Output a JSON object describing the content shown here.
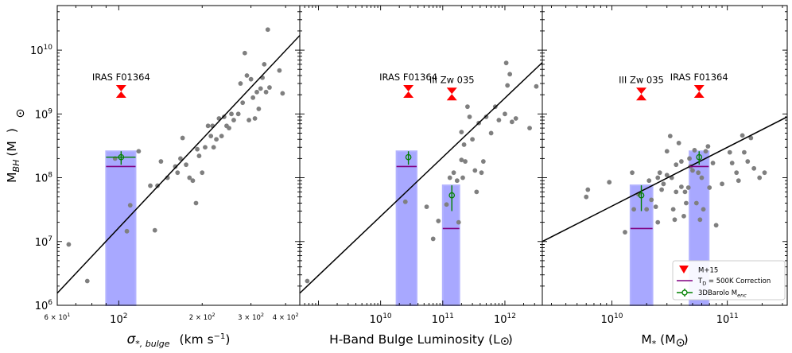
{
  "chart_data": {
    "type": "scatter",
    "shared_ylabel_main": "M",
    "shared_ylabel_sub": "BH",
    "shared_ylabel_unit": "(M",
    "shared_ylabel_close": ")",
    "ylim": [
      1000000,
      50000000000
    ],
    "yticks": [
      {
        "v": 1000000,
        "base": "10",
        "exp": "6"
      },
      {
        "v": 10000000,
        "base": "10",
        "exp": "7"
      },
      {
        "v": 100000000,
        "base": "10",
        "exp": "8"
      },
      {
        "v": 1000000000,
        "base": "10",
        "exp": "9"
      },
      {
        "v": 10000000000,
        "base": "10",
        "exp": "10"
      }
    ],
    "legend": {
      "placement": "lower-right of third panel",
      "entries": {
        "m15": "M+15",
        "td_base": "T",
        "td_sub": "D",
        "td_rest": " = 500K Correction",
        "barolo_base": "3DBarolo M",
        "barolo_sub": "enc"
      }
    },
    "panels": [
      {
        "id": "sigma",
        "xlabel_sym": "σ",
        "xlabel_sub": "*, bulge",
        "xlabel_unit": "(km s",
        "xlabel_sup": "−1",
        "xlabel_close": ")",
        "xlim": [
          60,
          450
        ],
        "xticks_major": [
          {
            "v": 100,
            "base": "10",
            "exp": "2"
          }
        ],
        "xticks_minor_labeled": [
          {
            "v": 60,
            "mant": "6 × 10",
            "exp": "1"
          },
          {
            "v": 200,
            "mant": "2 × 10",
            "exp": "2"
          },
          {
            "v": 300,
            "mant": "3 × 10",
            "exp": "2"
          },
          {
            "v": 400,
            "mant": "4 × 10",
            "exp": "2"
          }
        ],
        "fit_line": {
          "x": [
            60,
            450
          ],
          "y": [
            1550000,
            17000000000
          ]
        },
        "scatter": [
          [
            66,
            9000000
          ],
          [
            77,
            2400000
          ],
          [
            97,
            200000000
          ],
          [
            107,
            14500000
          ],
          [
            110,
            37000000
          ],
          [
            118,
            260000000
          ],
          [
            130,
            75000000
          ],
          [
            135,
            15000000
          ],
          [
            138,
            75000000
          ],
          [
            142,
            180000000
          ],
          [
            150,
            100000000
          ],
          [
            160,
            150000000
          ],
          [
            163,
            120000000
          ],
          [
            167,
            200000000
          ],
          [
            170,
            420000000
          ],
          [
            175,
            160000000
          ],
          [
            180,
            100000000
          ],
          [
            185,
            90000000
          ],
          [
            190,
            40000000
          ],
          [
            192,
            280000000
          ],
          [
            195,
            220000000
          ],
          [
            200,
            120000000
          ],
          [
            205,
            300000000
          ],
          [
            210,
            650000000
          ],
          [
            215,
            450000000
          ],
          [
            218,
            650000000
          ],
          [
            220,
            300000000
          ],
          [
            225,
            400000000
          ],
          [
            230,
            850000000
          ],
          [
            235,
            450000000
          ],
          [
            240,
            900000000
          ],
          [
            245,
            650000000
          ],
          [
            250,
            600000000
          ],
          [
            255,
            1000000000
          ],
          [
            260,
            800000000
          ],
          [
            270,
            1000000000
          ],
          [
            275,
            3000000000
          ],
          [
            280,
            1500000000
          ],
          [
            285,
            9000000000
          ],
          [
            290,
            4000000000
          ],
          [
            295,
            800000000
          ],
          [
            300,
            3500000000
          ],
          [
            305,
            1800000000
          ],
          [
            310,
            850000000
          ],
          [
            315,
            2200000000
          ],
          [
            320,
            1200000000
          ],
          [
            325,
            2500000000
          ],
          [
            330,
            3700000000
          ],
          [
            335,
            6000000000
          ],
          [
            340,
            2200000000
          ],
          [
            345,
            21000000000
          ],
          [
            350,
            2600000000
          ],
          [
            380,
            4800000000
          ],
          [
            390,
            2100000000
          ]
        ],
        "m15": [
          {
            "label": "IRAS F01364",
            "x": 102,
            "y": 2250000000
          }
        ],
        "bars": [
          {
            "x_lo": 90,
            "x_hi": 115,
            "y_top": 260000000,
            "td_y": 150000000
          }
        ],
        "barolo": [
          {
            "x": 102,
            "y": 210000000,
            "y_lo": 160000000,
            "y_hi": 260000000,
            "x_lo": 90,
            "x_hi": 115
          }
        ]
      },
      {
        "id": "hband",
        "xlabel_text": "H-Band Bulge Luminosity (L",
        "xlabel_close": ")",
        "xlim": [
          500000000,
          4000000000000
        ],
        "xticks_major": [
          {
            "v": 10000000000,
            "base": "10",
            "exp": "10"
          },
          {
            "v": 100000000000,
            "base": "10",
            "exp": "11"
          },
          {
            "v": 1000000000000,
            "base": "10",
            "exp": "12"
          }
        ],
        "xticks_minor_labeled": [],
        "fit_line": {
          "x": [
            500000000,
            4000000000000
          ],
          "y": [
            1550000,
            6400000000
          ]
        },
        "scatter": [
          [
            660000000,
            2400000
          ],
          [
            25000000000,
            42000000
          ],
          [
            55000000000,
            35000000
          ],
          [
            70000000000,
            11000000
          ],
          [
            85000000000,
            21000000
          ],
          [
            115000000000,
            38000000
          ],
          [
            130000000000,
            100000000
          ],
          [
            150000000000,
            120000000
          ],
          [
            170000000000,
            90000000
          ],
          [
            200000000000,
            190000000
          ],
          [
            210000000000,
            100000000
          ],
          [
            230000000000,
            180000000
          ],
          [
            200000000000,
            520000000
          ],
          [
            220000000000,
            330000000
          ],
          [
            250000000000,
            1300000000
          ],
          [
            270000000000,
            900000000
          ],
          [
            300000000000,
            400000000
          ],
          [
            330000000000,
            130000000
          ],
          [
            350000000000,
            60000000
          ],
          [
            380000000000,
            720000000
          ],
          [
            420000000000,
            120000000
          ],
          [
            450000000000,
            180000000
          ],
          [
            500000000000,
            900000000
          ],
          [
            600000000000,
            500000000
          ],
          [
            700000000000,
            1300000000
          ],
          [
            800000000000,
            800000000
          ],
          [
            1000000000000,
            1000000000
          ],
          [
            1050000000000,
            6300000000
          ],
          [
            1100000000000,
            2800000000
          ],
          [
            1200000000000,
            4200000000
          ],
          [
            1300000000000,
            750000000
          ],
          [
            1500000000000,
            850000000
          ],
          [
            2500000000000,
            600000000
          ],
          [
            3200000000000,
            2700000000
          ],
          [
            180000000000,
            20000000
          ]
        ],
        "m15": [
          {
            "label": "IRAS F01364",
            "x": 28000000000,
            "y": 2250000000
          },
          {
            "label": "III Zw 035",
            "x": 140000000000,
            "y": 2050000000
          }
        ],
        "bars": [
          {
            "x_lo": 18000000000,
            "x_hi": 38000000000,
            "y_top": 260000000,
            "td_y": 150000000
          },
          {
            "x_lo": 100000000000,
            "x_hi": 185000000000,
            "y_top": 76000000,
            "td_y": 16000000
          }
        ],
        "barolo": [
          {
            "x": 28000000000,
            "y": 210000000,
            "y_lo": 160000000,
            "y_hi": 260000000
          },
          {
            "x": 140000000000,
            "y": 53000000,
            "y_lo": 30000000,
            "y_hi": 76000000
          }
        ]
      },
      {
        "id": "mstar",
        "xlabel_text": "M",
        "xlabel_sub": "*",
        "xlabel_unit": " (M",
        "xlabel_close": ")",
        "xlim": [
          2500000000,
          330000000000
        ],
        "xticks_major": [
          {
            "v": 10000000000,
            "base": "10",
            "exp": "10"
          },
          {
            "v": 100000000000,
            "base": "10",
            "exp": "11"
          }
        ],
        "xticks_minor_labeled": [],
        "fit_line": {
          "x": [
            2500000000,
            330000000000
          ],
          "y": [
            10000000,
            900000000
          ]
        },
        "scatter": [
          [
            6000000000,
            50000000
          ],
          [
            6200000000,
            65000000
          ],
          [
            9500000000,
            85000000
          ],
          [
            13000000000,
            14000000
          ],
          [
            15000000000,
            120000000
          ],
          [
            15500000000,
            32000000
          ],
          [
            17000000000,
            55000000
          ],
          [
            20000000000,
            32000000
          ],
          [
            21000000000,
            90000000
          ],
          [
            22000000000,
            45000000
          ],
          [
            24000000000,
            35000000
          ],
          [
            25000000000,
            20000000
          ],
          [
            25000000000,
            100000000
          ],
          [
            26000000000,
            120000000
          ],
          [
            27000000000,
            65000000
          ],
          [
            28000000000,
            80000000
          ],
          [
            30000000000,
            260000000
          ],
          [
            30000000000,
            110000000
          ],
          [
            32000000000,
            450000000
          ],
          [
            33000000000,
            100000000
          ],
          [
            34000000000,
            32000000
          ],
          [
            35000000000,
            22000000
          ],
          [
            36000000000,
            160000000
          ],
          [
            36000000000,
            60000000
          ],
          [
            38000000000,
            350000000
          ],
          [
            40000000000,
            72000000
          ],
          [
            40000000000,
            180000000
          ],
          [
            42000000000,
            25000000
          ],
          [
            43000000000,
            60000000
          ],
          [
            44000000000,
            40000000
          ],
          [
            46000000000,
            70000000
          ],
          [
            47000000000,
            200000000
          ],
          [
            48000000000,
            150000000
          ],
          [
            50000000000,
            130000000
          ],
          [
            52000000000,
            270000000
          ],
          [
            54000000000,
            40000000
          ],
          [
            56000000000,
            120000000
          ],
          [
            58000000000,
            22000000
          ],
          [
            60000000000,
            100000000
          ],
          [
            62000000000,
            32000000
          ],
          [
            65000000000,
            260000000
          ],
          [
            68000000000,
            310000000
          ],
          [
            70000000000,
            70000000
          ],
          [
            75000000000,
            170000000
          ],
          [
            80000000000,
            18000000
          ],
          [
            90000000000,
            80000000
          ],
          [
            105000000000,
            250000000
          ],
          [
            110000000000,
            170000000
          ],
          [
            120000000000,
            120000000
          ],
          [
            125000000000,
            90000000
          ],
          [
            135000000000,
            460000000
          ],
          [
            140000000000,
            250000000
          ],
          [
            150000000000,
            180000000
          ],
          [
            160000000000,
            420000000
          ],
          [
            170000000000,
            140000000
          ],
          [
            190000000000,
            100000000
          ],
          [
            210000000000,
            120000000
          ]
        ],
        "m15": [
          {
            "label": "III Zw 035",
            "x": 18000000000,
            "y": 2050000000
          },
          {
            "label": "IRAS F01364",
            "x": 57000000000,
            "y": 2250000000
          }
        ],
        "bars": [
          {
            "x_lo": 14500000000,
            "x_hi": 22500000000,
            "y_top": 76000000,
            "td_y": 16000000
          },
          {
            "x_lo": 47000000000,
            "x_hi": 69000000000,
            "y_top": 260000000,
            "td_y": 150000000
          }
        ],
        "barolo": [
          {
            "x": 18000000000,
            "y": 53000000,
            "y_lo": 30000000,
            "y_hi": 76000000
          },
          {
            "x": 57000000000,
            "y": 210000000,
            "y_lo": 160000000,
            "y_hi": 260000000
          }
        ]
      }
    ]
  }
}
